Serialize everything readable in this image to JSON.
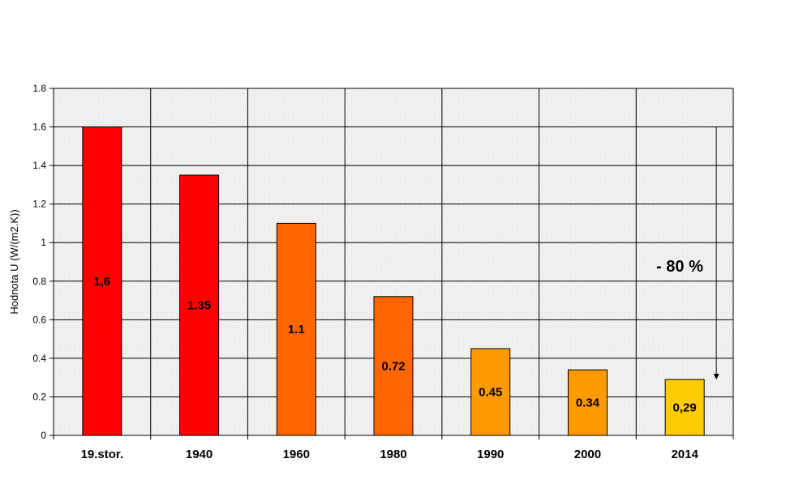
{
  "chart_data": {
    "type": "bar",
    "title": "",
    "xlabel": "",
    "ylabel": "Hodnota U (W/(m2.K))",
    "categories": [
      "19.stor.",
      "1940",
      "1960",
      "1980",
      "1990",
      "2000",
      "2014"
    ],
    "values": [
      1.6,
      1.35,
      1.1,
      0.72,
      0.45,
      0.34,
      0.29
    ],
    "data_labels": [
      "1,6",
      "1.35",
      "1.1",
      "0.72",
      "0.45",
      "0.34",
      "0,29"
    ],
    "bar_colors": [
      "#ff0000",
      "#ff0000",
      "#ff6600",
      "#ff6600",
      "#ff9900",
      "#ff9900",
      "#ffcc00"
    ],
    "ylim": [
      0,
      1.8
    ],
    "yticks": [
      0,
      0.2,
      0.4,
      0.6,
      0.8,
      1,
      1.2,
      1.4,
      1.6,
      1.8
    ],
    "ytick_labels": [
      "0",
      "0.2",
      "0.4",
      "0.6",
      "0.8",
      "1",
      "1.2",
      "1.4",
      "1.6",
      "1.8"
    ],
    "grid": true,
    "legend": "none",
    "plot_background": "#efefef",
    "annotation": {
      "text": "- 80 %",
      "arrow_from": 1.6,
      "arrow_to": 0.29
    }
  }
}
